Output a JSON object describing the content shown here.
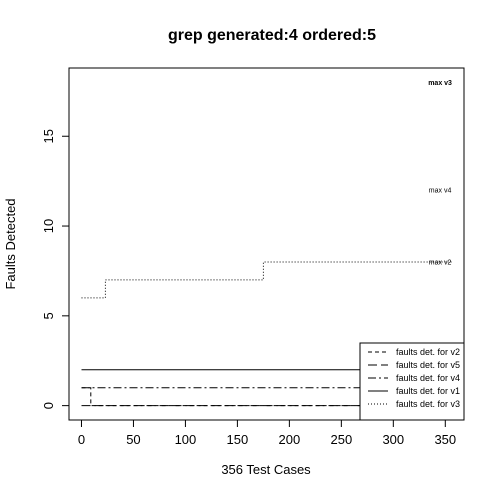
{
  "chart_data": {
    "type": "line",
    "title": "grep generated:4 ordered:5",
    "xlabel": "356 Test Cases",
    "ylabel": "Faults Detected",
    "xlim": [
      -12,
      368
    ],
    "ylim": [
      -0.8,
      18.8
    ],
    "xticks": [
      0,
      50,
      100,
      150,
      200,
      250,
      300,
      350
    ],
    "yticks": [
      0,
      5,
      10,
      15
    ],
    "series": [
      {
        "name": "faults det. for v2",
        "dash": "4,3",
        "points": [
          [
            0,
            1
          ],
          [
            9,
            1
          ],
          [
            9,
            0
          ],
          [
            356,
            0
          ]
        ]
      },
      {
        "name": "faults det. for v5",
        "dash": "9,4",
        "points": [
          [
            0,
            0
          ],
          [
            356,
            0
          ]
        ]
      },
      {
        "name": "faults det. for v4",
        "dash": "8,3,2,3",
        "points": [
          [
            0,
            1
          ],
          [
            356,
            1
          ]
        ]
      },
      {
        "name": "faults det. for v1",
        "dash": "",
        "points": [
          [
            0,
            2
          ],
          [
            356,
            2
          ]
        ]
      },
      {
        "name": "faults det. for v3",
        "dash": "1,2",
        "points": [
          [
            0,
            6
          ],
          [
            23,
            6
          ],
          [
            23,
            7
          ],
          [
            175,
            7
          ],
          [
            175,
            8
          ],
          [
            356,
            8
          ]
        ]
      }
    ],
    "annotations": [
      {
        "text": "max v3",
        "x": 345,
        "y": 18,
        "bold": true
      },
      {
        "text": "max v4",
        "x": 345,
        "y": 12,
        "bold": false
      },
      {
        "text": "max v2",
        "x": 345,
        "y": 8,
        "bold": false
      }
    ],
    "legend": {
      "position": "bottom-right",
      "entries": [
        {
          "label": "faults det. for v2",
          "dash": "4,3"
        },
        {
          "label": "faults det. for v5",
          "dash": "9,4"
        },
        {
          "label": "faults det. for v4",
          "dash": "8,3,2,3"
        },
        {
          "label": "faults det. for v1",
          "dash": ""
        },
        {
          "label": "faults det. for v3",
          "dash": "1,2"
        }
      ]
    },
    "grid": false
  }
}
